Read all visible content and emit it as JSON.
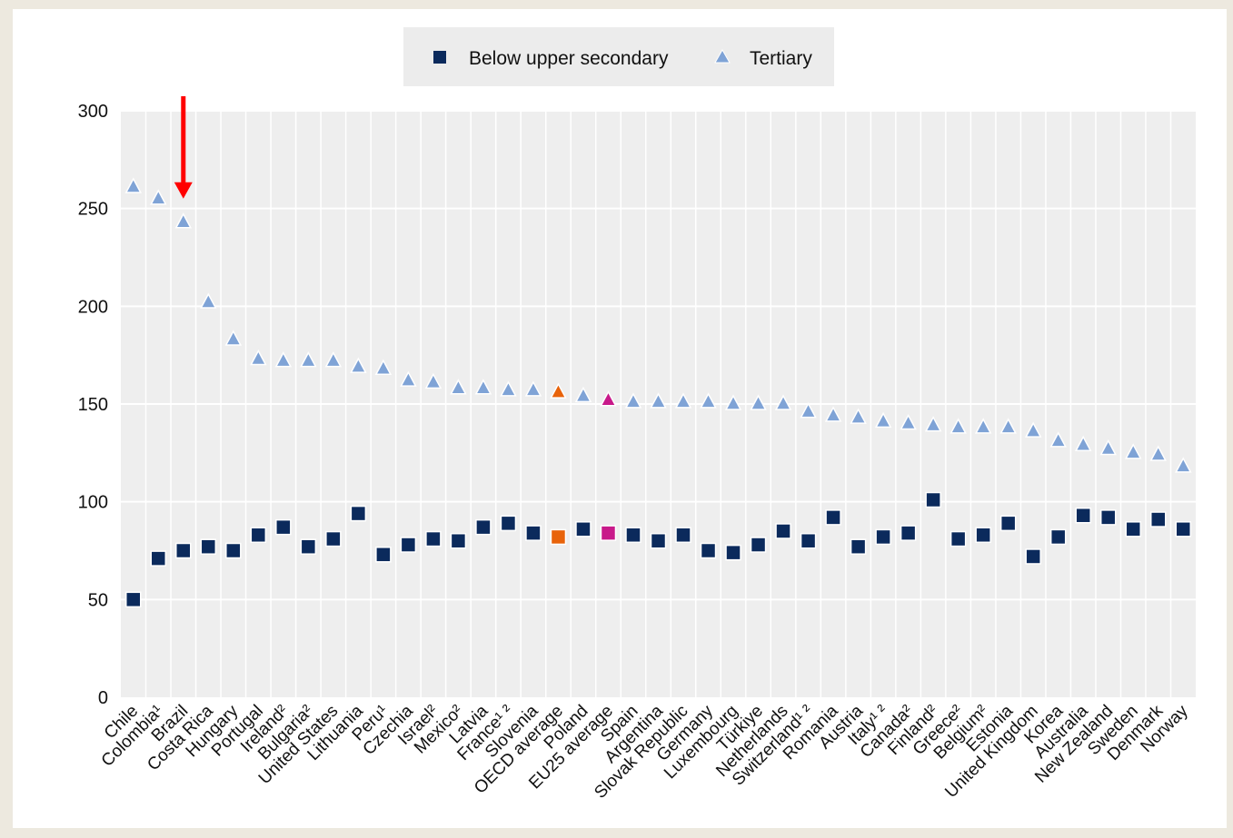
{
  "chart_data": {
    "type": "scatter",
    "ylim": [
      0,
      300
    ],
    "yticks": [
      0,
      50,
      100,
      150,
      200,
      250,
      300
    ],
    "grid": true,
    "legend_position": "top-center",
    "categories": [
      "Chile",
      "Colombia¹",
      "Brazil",
      "Costa Rica",
      "Hungary",
      "Portugal",
      "Ireland²",
      "Bulgaria²",
      "United States",
      "Lithuania",
      "Peru¹",
      "Czechia",
      "Israel²",
      "Mexico²",
      "Latvia",
      "France¹ ²",
      "Slovenia",
      "OECD average",
      "Poland",
      "EU25 average",
      "Spain",
      "Argentina",
      "Slovak Republic",
      "Germany",
      "Luxembourg",
      "Türkiye",
      "Netherlands",
      "Switzerland¹ ²",
      "Romania",
      "Austria",
      "Italy¹ ²",
      "Canada²",
      "Finland²",
      "Greece²",
      "Belgium²",
      "Estonia",
      "United Kingdom",
      "Korea",
      "Australia",
      "New Zealand",
      "Sweden",
      "Denmark",
      "Norway"
    ],
    "series": [
      {
        "name": "Below upper secondary",
        "marker": "square",
        "color": "#0b2a5c",
        "values": [
          50,
          71,
          75,
          77,
          75,
          83,
          87,
          77,
          81,
          94,
          73,
          78,
          81,
          80,
          87,
          89,
          84,
          82,
          86,
          84,
          83,
          80,
          83,
          75,
          74,
          78,
          85,
          80,
          92,
          77,
          82,
          84,
          101,
          81,
          83,
          89,
          72,
          82,
          93,
          92,
          86,
          91,
          86
        ]
      },
      {
        "name": "Tertiary",
        "marker": "triangle",
        "color": "#7fa3d6",
        "values": [
          261,
          255,
          243,
          202,
          183,
          173,
          172,
          172,
          172,
          169,
          168,
          162,
          161,
          158,
          158,
          157,
          157,
          156,
          154,
          152,
          151,
          151,
          151,
          151,
          150,
          150,
          150,
          146,
          144,
          143,
          141,
          140,
          139,
          138,
          138,
          138,
          136,
          131,
          129,
          127,
          125,
          124,
          118
        ]
      }
    ],
    "highlights": [
      {
        "category": "OECD average",
        "color": "#e8630a"
      },
      {
        "category": "EU25 average",
        "color": "#c8198a"
      }
    ],
    "annotation": {
      "type": "arrow",
      "category": "Brazil",
      "color": "#ff0000"
    }
  }
}
